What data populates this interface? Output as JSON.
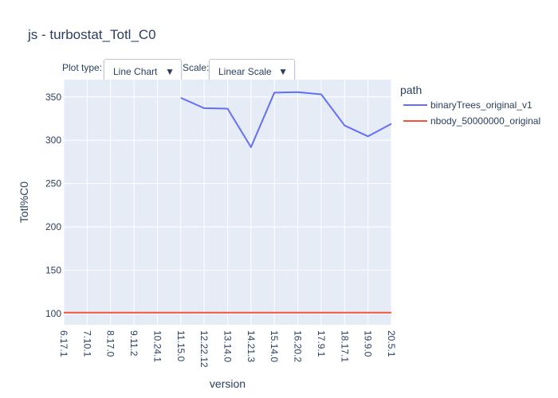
{
  "title": "js - turbostat_Totl_C0",
  "controls": {
    "plot_type_label": "Plot type:",
    "plot_type_value": "Line Chart",
    "scale_label": "Scale:",
    "scale_value": "Linear Scale",
    "caret": "▼"
  },
  "colors": {
    "plot_bg": "#e5ecf6",
    "grid": "#ffffff",
    "text": "#2a3f5f",
    "series_1": "#636efa",
    "series_2": "#ef553b"
  },
  "chart_data": {
    "type": "line",
    "title": "js - turbostat_Totl_C0",
    "xlabel": "version",
    "ylabel": "Totl%C0",
    "categories": [
      "6.17.1",
      "7.10.1",
      "8.17.0",
      "9.11.2",
      "10.24.1",
      "11.15.0",
      "12.22.12",
      "13.14.0",
      "14.21.3",
      "15.14.0",
      "16.20.2",
      "17.9.1",
      "18.17.1",
      "19.9.0",
      "20.5.1"
    ],
    "yticks": [
      100,
      150,
      200,
      250,
      300,
      350
    ],
    "ylim": [
      87,
      370
    ],
    "legend_title": "path",
    "legend_position": "right",
    "series": [
      {
        "name": "binaryTrees_original_v1",
        "color": "#636efa",
        "values": [
          null,
          null,
          null,
          null,
          null,
          349,
          337,
          336.5,
          292,
          355,
          355.5,
          353,
          317,
          304.5,
          319
        ]
      },
      {
        "name": "nbody_50000000_original",
        "color": "#ef553b",
        "values": [
          101,
          101,
          101,
          101,
          101,
          101,
          101,
          101,
          101,
          101,
          101,
          101,
          101,
          101,
          101
        ]
      }
    ]
  }
}
